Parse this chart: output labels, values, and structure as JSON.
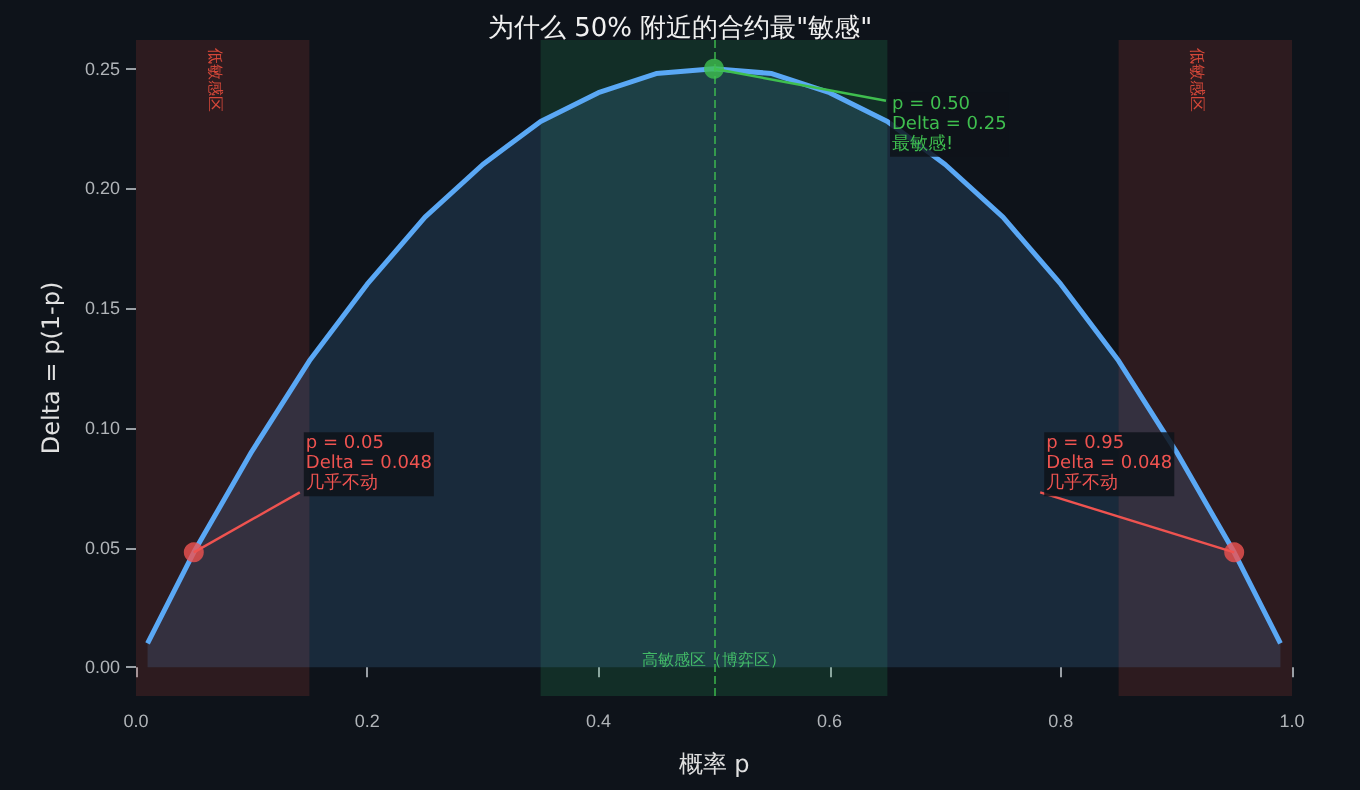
{
  "chart_data": {
    "type": "area",
    "title": "为什么 50% 附近的合约最\"敏感\"",
    "xlabel": "概率 p",
    "ylabel": "Delta = p(1-p)",
    "xlim": [
      0,
      1
    ],
    "ylim": [
      -0.012,
      0.262
    ],
    "xticks": [
      {
        "value": 0,
        "label": "0.0"
      },
      {
        "value": 0.2,
        "label": "0.2"
      },
      {
        "value": 0.4,
        "label": "0.4"
      },
      {
        "value": 0.6,
        "label": "0.6"
      },
      {
        "value": 0.8,
        "label": "0.8"
      },
      {
        "value": 1,
        "label": "1.0"
      }
    ],
    "yticks": [
      {
        "value": 0,
        "label": "0.00"
      },
      {
        "value": 0.05,
        "label": "0.05"
      },
      {
        "value": 0.1,
        "label": "0.10"
      },
      {
        "value": 0.15,
        "label": "0.15"
      },
      {
        "value": 0.2,
        "label": "0.20"
      },
      {
        "value": 0.25,
        "label": "0.25"
      }
    ],
    "grid": false,
    "series": [
      {
        "color": "#5aa8f5",
        "x": [
          0.01,
          0.05,
          0.1,
          0.15,
          0.2,
          0.25,
          0.3,
          0.35,
          0.4,
          0.45,
          0.5,
          0.55,
          0.6,
          0.65,
          0.7,
          0.75,
          0.8,
          0.85,
          0.9,
          0.95,
          0.99
        ],
        "values": [
          0.01,
          0.048,
          0.09,
          0.128,
          0.16,
          0.188,
          0.21,
          0.228,
          0.24,
          0.248,
          0.25,
          0.248,
          0.24,
          0.228,
          0.21,
          0.188,
          0.16,
          0.128,
          0.09,
          0.048,
          0.01
        ]
      },
      {
        "type": "scatter",
        "color": "#ef5350",
        "x": [
          0.05
        ],
        "values": [
          0.048
        ]
      },
      {
        "type": "scatter",
        "color": "#3fbf4f",
        "x": [
          0.5
        ],
        "values": [
          0.25
        ]
      },
      {
        "type": "scatter",
        "color": "#ef5350",
        "x": [
          0.95
        ],
        "values": [
          0.048
        ]
      }
    ],
    "bands": [
      {
        "axis": "x",
        "from": 0,
        "to": 0.15,
        "label": "低敏感区",
        "color": "#e74c3c"
      },
      {
        "axis": "x",
        "from": 0.85,
        "to": 1,
        "label": "低敏感区",
        "color": "#e74c3c"
      },
      {
        "axis": "x",
        "from": 0.35,
        "to": 0.65,
        "label": "高敏感区（博弈区）",
        "color": "#2ecc71"
      }
    ],
    "ref_lines": [
      {
        "axis": "x",
        "value": 0.5,
        "color": "#3fbf4f",
        "line_style": "dashed"
      }
    ],
    "annotations": [
      {
        "text": "p = 0.05\nDelta = 0.048\n几乎不动",
        "x": 0.05,
        "y": 0.048
      },
      {
        "text": "p = 0.50\nDelta = 0.25\n最敏感!",
        "x": 0.5,
        "y": 0.25
      },
      {
        "text": "p = 0.95\nDelta = 0.048\n几乎不动",
        "x": 0.95,
        "y": 0.048
      }
    ]
  }
}
